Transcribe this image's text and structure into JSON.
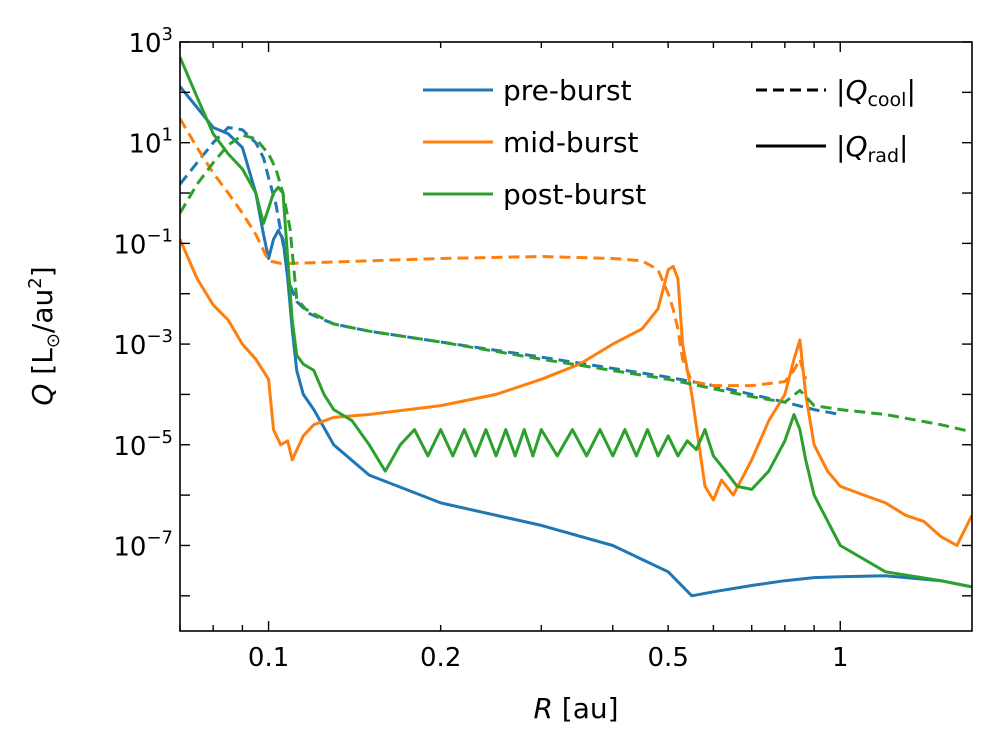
{
  "chart_data": {
    "type": "line",
    "xscale": "log",
    "yscale": "log",
    "xlim": [
      0.07,
      1.7
    ],
    "ylim": [
      2e-09,
      1000
    ],
    "xlabel_var": "R",
    "xlabel_unit": " [au]",
    "ylabel_var": "Q",
    "ylabel_open": " [L",
    "ylabel_sun": "⊙",
    "ylabel_mid": "/au",
    "ylabel_sup": "2",
    "ylabel_close": "]",
    "x_ticks": [
      {
        "value": 0.1,
        "label": "0.1"
      },
      {
        "value": 0.2,
        "label": "0.2"
      },
      {
        "value": 0.5,
        "label": "0.5"
      },
      {
        "value": 1,
        "label": "1"
      }
    ],
    "y_ticks": [
      {
        "value": 1000,
        "base": "10",
        "exp": "3"
      },
      {
        "value": 10,
        "base": "10",
        "exp": "1"
      },
      {
        "value": 0.1,
        "base": "10",
        "exp": "−1"
      },
      {
        "value": 0.001,
        "base": "10",
        "exp": "−3"
      },
      {
        "value": 1e-05,
        "base": "10",
        "exp": "−5"
      },
      {
        "value": 1e-07,
        "base": "10",
        "exp": "−7"
      }
    ],
    "legend": {
      "series": [
        {
          "label": "pre-burst",
          "color": "#1f77b4"
        },
        {
          "label": "mid-burst",
          "color": "#ff7f0e"
        },
        {
          "label": "post-burst",
          "color": "#2ca02c"
        }
      ],
      "styles": [
        {
          "style": "dashed",
          "var": "Q",
          "sub": "cool"
        },
        {
          "style": "solid",
          "var": "Q",
          "sub": "rad"
        }
      ]
    },
    "series": [
      {
        "name": "pre-burst",
        "quantity": "Q_cool",
        "color": "#1f77b4",
        "style": "dashed",
        "x": [
          0.07,
          0.075,
          0.08,
          0.085,
          0.09,
          0.095,
          0.098,
          0.1,
          0.103,
          0.106,
          0.109,
          0.112,
          0.118,
          0.13,
          0.15,
          0.2,
          0.3,
          0.5,
          0.6,
          0.7,
          0.8,
          0.9,
          1.0
        ],
        "y": [
          1.5,
          4,
          10,
          20,
          18,
          10,
          5,
          2,
          0.6,
          0.1,
          0.015,
          0.007,
          0.004,
          0.0025,
          0.0018,
          0.0011,
          0.00055,
          0.00022,
          0.00015,
          0.0001,
          7e-05,
          5e-05,
          4e-05
        ]
      },
      {
        "name": "pre-burst",
        "quantity": "Q_rad",
        "color": "#1f77b4",
        "style": "solid",
        "x": [
          0.07,
          0.075,
          0.08,
          0.085,
          0.09,
          0.095,
          0.098,
          0.1,
          0.102,
          0.104,
          0.106,
          0.108,
          0.11,
          0.112,
          0.115,
          0.12,
          0.13,
          0.15,
          0.2,
          0.3,
          0.4,
          0.5,
          0.55,
          0.6,
          0.7,
          0.8,
          0.9,
          1.0,
          1.2,
          1.5,
          1.7
        ],
        "y": [
          130,
          50,
          20,
          15,
          8,
          1,
          0.15,
          0.05,
          0.12,
          0.18,
          0.12,
          0.02,
          0.002,
          0.0003,
          0.0001,
          5e-05,
          1e-05,
          2.5e-06,
          7e-07,
          2.5e-07,
          1e-07,
          3e-08,
          1e-08,
          1.2e-08,
          1.6e-08,
          2e-08,
          2.3e-08,
          2.4e-08,
          2.5e-08,
          2e-08,
          1.5e-08
        ]
      },
      {
        "name": "mid-burst",
        "quantity": "Q_cool",
        "color": "#ff7f0e",
        "style": "dashed",
        "x": [
          0.07,
          0.075,
          0.08,
          0.085,
          0.09,
          0.095,
          0.1,
          0.105,
          0.11,
          0.15,
          0.2,
          0.3,
          0.4,
          0.45,
          0.48,
          0.5,
          0.51,
          0.52,
          0.53,
          0.55,
          0.6,
          0.7,
          0.8,
          0.83,
          0.85,
          0.87
        ],
        "y": [
          30,
          8,
          2.5,
          1,
          0.4,
          0.15,
          0.045,
          0.04,
          0.04,
          0.045,
          0.05,
          0.055,
          0.05,
          0.045,
          0.03,
          0.01,
          0.005,
          0.002,
          0.0005,
          0.00018,
          0.00015,
          0.00015,
          0.00018,
          0.0003,
          0.0005,
          0.0002
        ]
      },
      {
        "name": "mid-burst",
        "quantity": "Q_rad",
        "color": "#ff7f0e",
        "style": "solid",
        "x": [
          0.07,
          0.075,
          0.08,
          0.085,
          0.09,
          0.095,
          0.1,
          0.102,
          0.105,
          0.108,
          0.11,
          0.115,
          0.12,
          0.13,
          0.15,
          0.2,
          0.25,
          0.3,
          0.35,
          0.4,
          0.45,
          0.48,
          0.5,
          0.51,
          0.52,
          0.53,
          0.55,
          0.58,
          0.6,
          0.62,
          0.65,
          0.7,
          0.75,
          0.8,
          0.83,
          0.85,
          0.87,
          0.9,
          0.95,
          1.0,
          1.1,
          1.2,
          1.3,
          1.4,
          1.5,
          1.6,
          1.7
        ],
        "y": [
          0.12,
          0.02,
          0.006,
          0.003,
          0.001,
          0.0005,
          0.0002,
          2e-05,
          1e-05,
          1.2e-05,
          5e-06,
          1.5e-05,
          2.5e-05,
          3.5e-05,
          4e-05,
          6e-05,
          0.0001,
          0.0002,
          0.0004,
          0.001,
          0.002,
          0.005,
          0.03,
          0.035,
          0.02,
          0.001,
          0.0001,
          1.5e-06,
          8e-07,
          2e-06,
          1e-06,
          5e-06,
          3e-05,
          0.0001,
          0.0005,
          0.0012,
          0.0001,
          1e-05,
          3e-06,
          1.5e-06,
          1e-06,
          7e-07,
          4e-07,
          3e-07,
          1.5e-07,
          1e-07,
          4e-07
        ]
      },
      {
        "name": "post-burst",
        "quantity": "Q_cool",
        "color": "#2ca02c",
        "style": "dashed",
        "x": [
          0.07,
          0.075,
          0.08,
          0.085,
          0.09,
          0.095,
          0.1,
          0.103,
          0.106,
          0.109,
          0.112,
          0.116,
          0.12,
          0.13,
          0.15,
          0.2,
          0.3,
          0.5,
          0.6,
          0.7,
          0.8,
          0.85,
          0.9,
          1.0,
          1.2,
          1.5,
          1.7
        ],
        "y": [
          0.4,
          1.5,
          4,
          9,
          14,
          12,
          6,
          3,
          1,
          0.2,
          0.008,
          0.005,
          0.004,
          0.0025,
          0.0018,
          0.0011,
          0.0005,
          0.0002,
          0.00013,
          9e-05,
          7e-05,
          0.00012,
          6e-05,
          5e-05,
          4e-05,
          2.5e-05,
          1.8e-05
        ]
      },
      {
        "name": "post-burst",
        "quantity": "Q_rad",
        "color": "#2ca02c",
        "style": "solid",
        "x": [
          0.07,
          0.075,
          0.08,
          0.085,
          0.09,
          0.095,
          0.098,
          0.1,
          0.102,
          0.104,
          0.106,
          0.108,
          0.11,
          0.112,
          0.115,
          0.12,
          0.125,
          0.13,
          0.14,
          0.15,
          0.16,
          0.17,
          0.18,
          0.19,
          0.2,
          0.21,
          0.22,
          0.23,
          0.24,
          0.25,
          0.26,
          0.27,
          0.28,
          0.29,
          0.3,
          0.32,
          0.34,
          0.36,
          0.38,
          0.4,
          0.42,
          0.44,
          0.46,
          0.48,
          0.5,
          0.52,
          0.54,
          0.56,
          0.58,
          0.6,
          0.63,
          0.66,
          0.7,
          0.75,
          0.8,
          0.83,
          0.85,
          0.87,
          0.9,
          1.0,
          1.2,
          1.5,
          1.7
        ],
        "y": [
          500,
          80,
          15,
          6,
          3,
          1,
          0.25,
          0.5,
          1,
          1.3,
          1,
          0.05,
          0.003,
          0.0006,
          0.0004,
          0.0003,
          0.0001,
          5e-05,
          3e-05,
          1e-05,
          3e-06,
          1e-05,
          2e-05,
          6e-06,
          2e-05,
          6e-06,
          2e-05,
          6e-06,
          2e-05,
          6e-06,
          2e-05,
          6e-06,
          2e-05,
          6e-06,
          2e-05,
          6e-06,
          2e-05,
          6e-06,
          2e-05,
          6e-06,
          2e-05,
          6e-06,
          2e-05,
          6e-06,
          1.5e-05,
          6e-06,
          1.2e-05,
          8e-06,
          2e-05,
          6e-06,
          3e-06,
          1.5e-06,
          1.3e-06,
          3e-06,
          1.2e-05,
          4e-05,
          2e-05,
          5e-06,
          1e-06,
          1e-07,
          3e-08,
          2e-08,
          1.5e-08
        ]
      }
    ]
  }
}
